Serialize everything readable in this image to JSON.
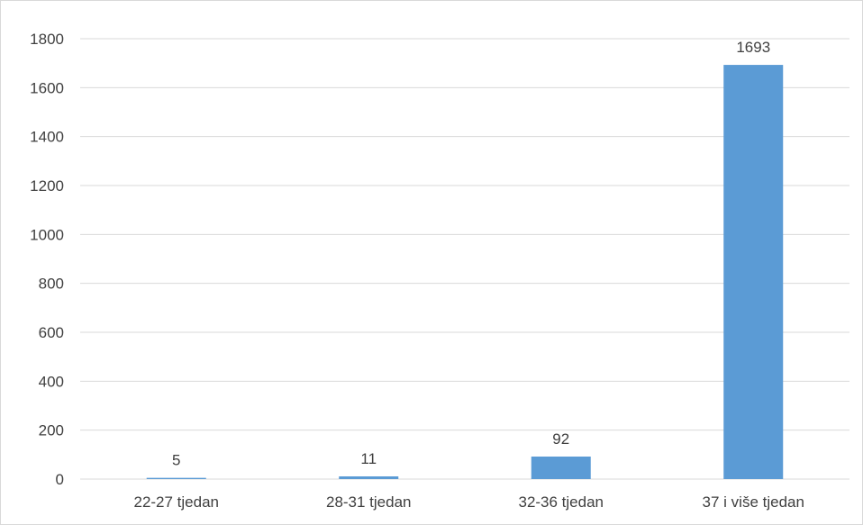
{
  "chart_data": {
    "type": "bar",
    "categories": [
      "22-27 tjedan",
      "28-31 tjedan",
      "32-36 tjedan",
      "37 i više tjedan"
    ],
    "values": [
      5,
      11,
      92,
      1693
    ],
    "data_labels": [
      "5",
      "11",
      "92",
      "1693"
    ],
    "title": "",
    "xlabel": "",
    "ylabel": "",
    "ylim": [
      0,
      1800
    ],
    "yticks": [
      "0",
      "200",
      "400",
      "600",
      "800",
      "1000",
      "1200",
      "1400",
      "1600",
      "1800"
    ],
    "grid": true,
    "legend": "none",
    "bar_color": "#5b9bd5",
    "grid_color": "#d9d9d9"
  }
}
